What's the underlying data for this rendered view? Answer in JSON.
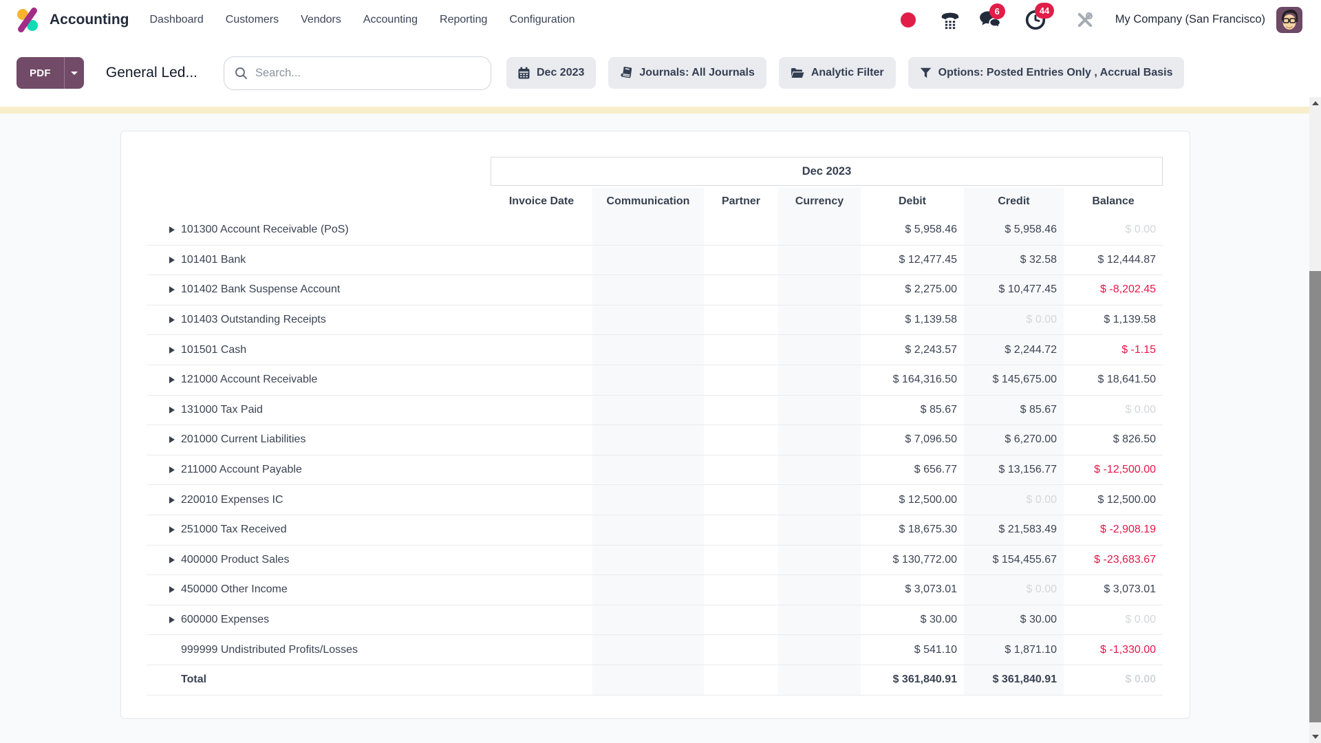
{
  "navbar": {
    "app_name": "Accounting",
    "menu_items": [
      "Dashboard",
      "Customers",
      "Vendors",
      "Accounting",
      "Reporting",
      "Configuration"
    ],
    "message_badge": "6",
    "activity_badge": "44",
    "company": "My Company (San Francisco)"
  },
  "toolbar": {
    "pdf_label": "PDF",
    "title": "General Led...",
    "search_placeholder": "Search...",
    "filters": [
      {
        "icon": "calendar-icon",
        "label": "Dec 2023"
      },
      {
        "icon": "journal-icon",
        "label": "Journals: All Journals"
      },
      {
        "icon": "folder-open-icon",
        "label": "Analytic Filter"
      },
      {
        "icon": "filter-icon",
        "label": "Options: Posted Entries Only , Accrual Basis"
      }
    ]
  },
  "table": {
    "period_header": "Dec 2023",
    "columns": [
      "Invoice Date",
      "Communication",
      "Partner",
      "Currency",
      "Debit",
      "Credit",
      "Balance"
    ],
    "rows": [
      {
        "name": "101300 Account Receivable (PoS)",
        "expandable": true,
        "debit": "$ 5,958.46",
        "credit": "$ 5,958.46",
        "credit_state": "normal",
        "balance": "$ 0.00",
        "balance_state": "zero"
      },
      {
        "name": "101401 Bank",
        "expandable": true,
        "debit": "$ 12,477.45",
        "credit": "$ 32.58",
        "credit_state": "normal",
        "balance": "$ 12,444.87",
        "balance_state": "normal"
      },
      {
        "name": "101402 Bank Suspense Account",
        "expandable": true,
        "debit": "$ 2,275.00",
        "credit": "$ 10,477.45",
        "credit_state": "normal",
        "balance": "$ -8,202.45",
        "balance_state": "negative"
      },
      {
        "name": "101403 Outstanding Receipts",
        "expandable": true,
        "debit": "$ 1,139.58",
        "credit": "$ 0.00",
        "credit_state": "zero",
        "balance": "$ 1,139.58",
        "balance_state": "normal"
      },
      {
        "name": "101501 Cash",
        "expandable": true,
        "debit": "$ 2,243.57",
        "credit": "$ 2,244.72",
        "credit_state": "normal",
        "balance": "$ -1.15",
        "balance_state": "negative"
      },
      {
        "name": "121000 Account Receivable",
        "expandable": true,
        "debit": "$ 164,316.50",
        "credit": "$ 145,675.00",
        "credit_state": "normal",
        "balance": "$ 18,641.50",
        "balance_state": "normal"
      },
      {
        "name": "131000 Tax Paid",
        "expandable": true,
        "debit": "$ 85.67",
        "credit": "$ 85.67",
        "credit_state": "normal",
        "balance": "$ 0.00",
        "balance_state": "zero"
      },
      {
        "name": "201000 Current Liabilities",
        "expandable": true,
        "debit": "$ 7,096.50",
        "credit": "$ 6,270.00",
        "credit_state": "normal",
        "balance": "$ 826.50",
        "balance_state": "normal"
      },
      {
        "name": "211000 Account Payable",
        "expandable": true,
        "debit": "$ 656.77",
        "credit": "$ 13,156.77",
        "credit_state": "normal",
        "balance": "$ -12,500.00",
        "balance_state": "negative"
      },
      {
        "name": "220010 Expenses IC",
        "expandable": true,
        "debit": "$ 12,500.00",
        "credit": "$ 0.00",
        "credit_state": "zero",
        "balance": "$ 12,500.00",
        "balance_state": "normal"
      },
      {
        "name": "251000 Tax Received",
        "expandable": true,
        "debit": "$ 18,675.30",
        "credit": "$ 21,583.49",
        "credit_state": "normal",
        "balance": "$ -2,908.19",
        "balance_state": "negative"
      },
      {
        "name": "400000 Product Sales",
        "expandable": true,
        "debit": "$ 130,772.00",
        "credit": "$ 154,455.67",
        "credit_state": "normal",
        "balance": "$ -23,683.67",
        "balance_state": "negative"
      },
      {
        "name": "450000 Other Income",
        "expandable": true,
        "debit": "$ 3,073.01",
        "credit": "$ 0.00",
        "credit_state": "zero",
        "balance": "$ 3,073.01",
        "balance_state": "normal"
      },
      {
        "name": "600000 Expenses",
        "expandable": true,
        "debit": "$ 30.00",
        "credit": "$ 30.00",
        "credit_state": "normal",
        "balance": "$ 0.00",
        "balance_state": "zero"
      },
      {
        "name": "999999 Undistributed Profits/Losses",
        "expandable": false,
        "debit": "$ 541.10",
        "credit": "$ 1,871.10",
        "credit_state": "normal",
        "balance": "$ -1,330.00",
        "balance_state": "negative"
      }
    ],
    "total": {
      "name": "Total",
      "debit": "$ 361,840.91",
      "credit": "$ 361,840.91",
      "balance": "$ 0.00",
      "balance_state": "zero"
    }
  },
  "colors": {
    "primary": "#714B67",
    "danger": "#e5164a",
    "badge": "#e11d48",
    "warning_band": "#f8eecb",
    "logo_yellow": "#f9b32e",
    "logo_teal": "#10dbb4",
    "logo_magenta": "#a12d87"
  }
}
